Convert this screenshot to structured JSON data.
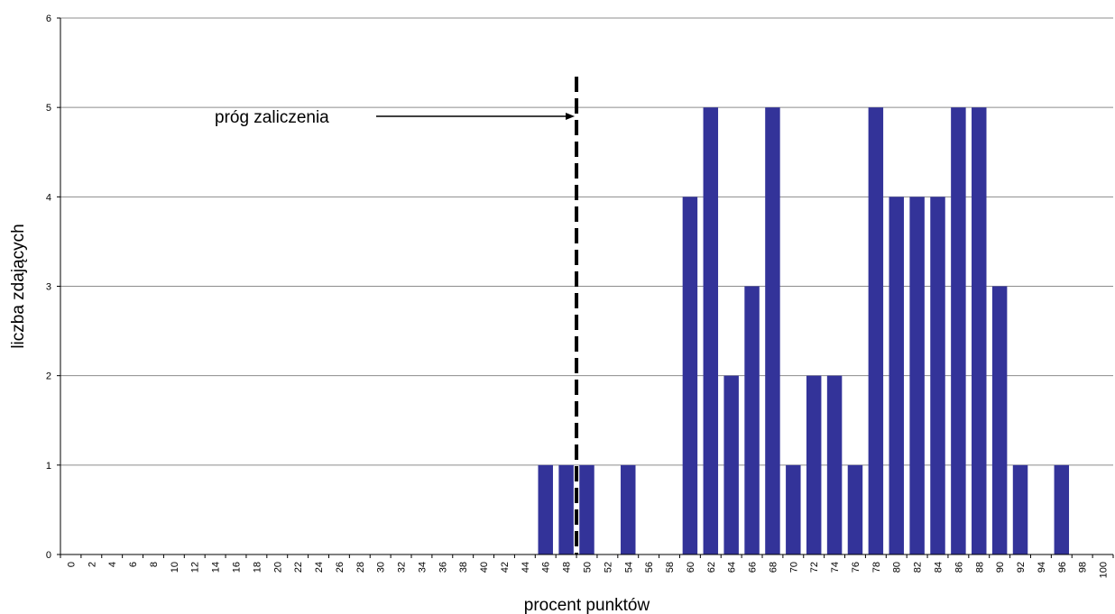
{
  "chart_data": {
    "type": "bar",
    "xlabel": "procent punktów",
    "ylabel": "liczba zdających",
    "ylim": [
      0,
      6
    ],
    "yticks": [
      0,
      1,
      2,
      3,
      4,
      5,
      6
    ],
    "grid": true,
    "categories": [
      "0",
      "2",
      "4",
      "6",
      "8",
      "10",
      "12",
      "14",
      "16",
      "18",
      "20",
      "22",
      "24",
      "26",
      "28",
      "30",
      "32",
      "34",
      "36",
      "38",
      "40",
      "42",
      "44",
      "46",
      "48",
      "50",
      "52",
      "54",
      "56",
      "58",
      "60",
      "62",
      "64",
      "66",
      "68",
      "70",
      "72",
      "74",
      "76",
      "78",
      "80",
      "82",
      "84",
      "86",
      "88",
      "90",
      "92",
      "94",
      "96",
      "98",
      "100"
    ],
    "values": [
      0,
      0,
      0,
      0,
      0,
      0,
      0,
      0,
      0,
      0,
      0,
      0,
      0,
      0,
      0,
      0,
      0,
      0,
      0,
      0,
      0,
      0,
      0,
      1,
      1,
      1,
      0,
      1,
      0,
      0,
      4,
      5,
      2,
      3,
      5,
      1,
      2,
      2,
      1,
      5,
      4,
      4,
      4,
      5,
      5,
      3,
      1,
      0,
      1,
      0,
      0
    ],
    "bar_color": "#333399",
    "threshold": {
      "label": "próg zaliczenia",
      "x": 49
    }
  }
}
